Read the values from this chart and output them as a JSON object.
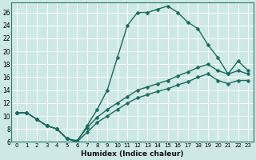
{
  "xlabel": "Humidex (Indice chaleur)",
  "bg_color": "#cde8e5",
  "grid_color": "#ffffff",
  "line_color": "#1a6b5e",
  "ylim": [
    6,
    27.5
  ],
  "xlim": [
    -0.5,
    23.5
  ],
  "yticks": [
    6,
    8,
    10,
    12,
    14,
    16,
    18,
    20,
    22,
    24,
    26
  ],
  "xticks": [
    0,
    1,
    2,
    3,
    4,
    5,
    6,
    7,
    8,
    9,
    10,
    11,
    12,
    13,
    14,
    15,
    16,
    17,
    18,
    19,
    20,
    21,
    22,
    23
  ],
  "series": [
    {
      "x": [
        0,
        1,
        2,
        3,
        4,
        5,
        6,
        7,
        8,
        9,
        10,
        11,
        12,
        13,
        14,
        15,
        16,
        17,
        18,
        19,
        20,
        21,
        22,
        23
      ],
      "y": [
        10.5,
        10.5,
        9.5,
        8.5,
        8.0,
        6.5,
        6.0,
        8.5,
        11.0,
        14.0,
        19.0,
        24.0,
        26.0,
        26.0,
        26.5,
        27.0,
        26.0,
        24.5,
        23.5,
        21.0,
        19.0,
        16.5,
        18.5,
        17.0
      ]
    },
    {
      "x": [
        0,
        1,
        2,
        3,
        4,
        5,
        6,
        7,
        8,
        9,
        10,
        11,
        12,
        13,
        14,
        15,
        16,
        17,
        18,
        19,
        20,
        21,
        22,
        23
      ],
      "y": [
        10.5,
        10.5,
        9.5,
        8.5,
        8.0,
        6.5,
        6.2,
        8.2,
        9.8,
        11.0,
        12.0,
        13.0,
        14.0,
        14.5,
        15.0,
        15.5,
        16.2,
        16.8,
        17.5,
        18.0,
        17.0,
        16.5,
        17.0,
        16.5
      ]
    },
    {
      "x": [
        0,
        1,
        2,
        3,
        4,
        5,
        6,
        7,
        8,
        9,
        10,
        11,
        12,
        13,
        14,
        15,
        16,
        17,
        18,
        19,
        20,
        21,
        22,
        23
      ],
      "y": [
        10.5,
        10.5,
        9.5,
        8.5,
        8.0,
        6.5,
        6.0,
        7.5,
        9.0,
        10.0,
        11.0,
        12.0,
        12.8,
        13.3,
        13.8,
        14.2,
        14.8,
        15.3,
        16.0,
        16.5,
        15.5,
        15.0,
        15.5,
        15.5
      ]
    }
  ],
  "marker": "D",
  "marker_size": 2.5,
  "line_width": 1.0,
  "ylabel_fontsize": 5.5,
  "xlabel_fontsize": 6.5,
  "tick_fontsize": 5.0
}
